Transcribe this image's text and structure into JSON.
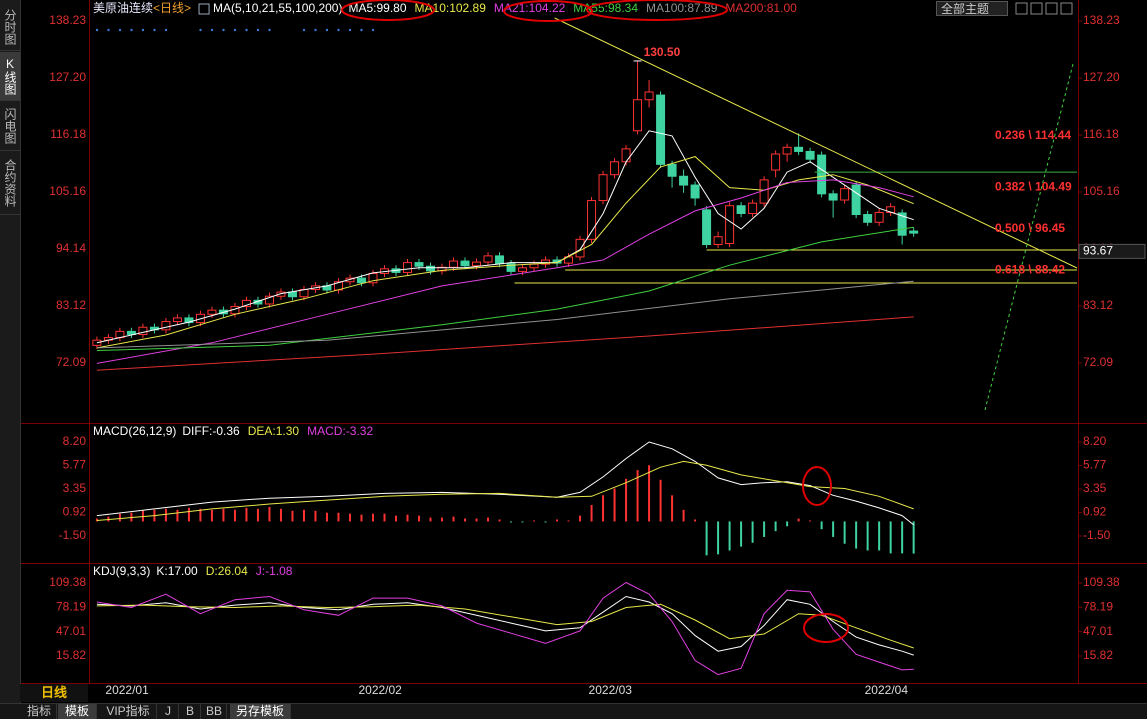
{
  "toolbar": {
    "title": "美原油连续",
    "period": "<日线>",
    "theme": "全部主题"
  },
  "sidebar": [
    "分时图",
    "K线图",
    "闪电图",
    "合约资料"
  ],
  "bottom_tabs": {
    "period": "日线",
    "buttons": [
      "指标",
      "模板",
      "VIP指标",
      "J",
      "B",
      "BB",
      "另存模板"
    ]
  },
  "chart_data": [
    {
      "type": "candlestick",
      "title": "MA(5,10,21,55,100,200)",
      "categories": [
        null,
        "2022/01",
        null,
        null,
        null,
        null,
        null,
        null,
        null,
        null,
        null,
        null,
        null,
        null,
        null,
        null,
        null,
        null,
        null,
        null,
        null,
        null,
        null,
        "2022/02",
        null,
        null,
        null,
        null,
        null,
        null,
        null,
        null,
        null,
        null,
        null,
        null,
        null,
        null,
        null,
        null,
        null,
        null,
        null,
        "2022/03",
        null,
        null,
        null,
        null,
        null,
        null,
        null,
        null,
        null,
        null,
        null,
        null,
        null,
        null,
        null,
        null,
        null,
        null,
        null,
        null,
        null,
        null,
        null,
        "2022/04",
        null,
        null,
        null,
        null
      ],
      "open": [
        75.5,
        76.5,
        77.0,
        78.2,
        77.6,
        79.0,
        78.5,
        80.1,
        80.8,
        79.9,
        81.5,
        82.3,
        81.6,
        83.0,
        84.2,
        83.5,
        85.0,
        85.8,
        84.9,
        86.3,
        87.0,
        86.2,
        87.8,
        88.5,
        87.6,
        89.4,
        90.3,
        89.6,
        91.5,
        90.8,
        89.9,
        90.6,
        91.8,
        90.9,
        91.6,
        92.8,
        91.3,
        89.8,
        90.5,
        91.2,
        92.0,
        91.4,
        92.6,
        96.0,
        103.5,
        108.5,
        111.0,
        117.0,
        123.0,
        123.9,
        110.5,
        108.2,
        106.5,
        101.7,
        95.0,
        95.2,
        102.5,
        101.0,
        103.0,
        109.4,
        112.5,
        113.8,
        113.0,
        112.3,
        104.8,
        103.6,
        106.5,
        100.8,
        99.3,
        101.2,
        101.1,
        97.6
      ],
      "high": [
        77.2,
        77.7,
        78.9,
        78.9,
        79.7,
        79.7,
        80.8,
        81.5,
        81.5,
        82.2,
        83.0,
        83.0,
        83.7,
        84.9,
        84.9,
        85.7,
        86.5,
        86.5,
        87.0,
        87.7,
        87.7,
        88.5,
        89.2,
        89.2,
        90.1,
        91.0,
        91.0,
        92.2,
        92.2,
        91.5,
        91.3,
        92.5,
        92.5,
        92.3,
        93.5,
        93.5,
        92.0,
        91.2,
        91.9,
        92.7,
        92.7,
        93.3,
        96.7,
        104.2,
        109.2,
        111.7,
        114.2,
        130.5,
        126.8,
        124.6,
        111.2,
        109.5,
        107.2,
        102.4,
        97.5,
        103.2,
        103.2,
        103.7,
        108.2,
        113.2,
        114.5,
        116.5,
        113.7,
        113.0,
        105.5,
        106.5,
        107.2,
        101.5,
        101.9,
        103.0,
        101.8,
        98.3
      ],
      "low": [
        74.8,
        75.8,
        76.3,
        76.9,
        76.9,
        77.8,
        77.8,
        79.4,
        79.2,
        79.2,
        80.8,
        80.9,
        80.9,
        82.3,
        82.8,
        82.8,
        84.3,
        84.2,
        84.2,
        85.6,
        85.5,
        85.5,
        87.1,
        86.9,
        86.9,
        88.7,
        88.9,
        88.9,
        90.1,
        89.2,
        89.2,
        89.9,
        90.2,
        90.2,
        90.9,
        90.6,
        89.1,
        89.1,
        89.8,
        90.5,
        90.7,
        90.7,
        91.9,
        95.3,
        102.8,
        107.8,
        110.3,
        116.3,
        121.5,
        109.8,
        106.0,
        105.0,
        102.5,
        94.3,
        94.3,
        94.5,
        100.3,
        100.3,
        102.3,
        108.0,
        111.0,
        112.3,
        110.8,
        104.1,
        100.2,
        102.9,
        100.1,
        98.6,
        98.6,
        100.5,
        95.0,
        96.5
      ],
      "close": [
        76.5,
        77.0,
        78.2,
        77.6,
        79.0,
        78.5,
        80.1,
        80.8,
        79.9,
        81.5,
        82.3,
        81.6,
        83.0,
        84.2,
        83.5,
        85.0,
        85.8,
        84.9,
        86.3,
        87.0,
        86.2,
        87.8,
        88.5,
        87.6,
        89.4,
        90.3,
        89.6,
        91.5,
        90.8,
        89.9,
        90.6,
        91.8,
        90.9,
        91.6,
        92.8,
        91.3,
        89.8,
        90.5,
        91.2,
        92.0,
        91.4,
        92.6,
        96.0,
        103.5,
        108.5,
        111.0,
        113.5,
        123.0,
        124.5,
        110.5,
        108.2,
        106.5,
        104.0,
        95.0,
        96.5,
        102.5,
        101.0,
        103.0,
        107.5,
        112.5,
        113.8,
        113.0,
        111.5,
        104.8,
        103.6,
        105.8,
        100.8,
        99.3,
        101.2,
        102.3,
        96.8,
        97.2
      ],
      "up_color": "#ff3232",
      "down_color": "#3ed3a0",
      "xlim": [
        -0.6,
        85.2
      ],
      "ylim": [
        61.06,
        139.58
      ],
      "yticks": [
        72.09,
        83.12,
        94.14,
        105.16,
        116.18,
        {
          "value": 127.2,
          "label": "127.20"
        },
        138.23
      ],
      "series": [
        {
          "name": "MA5:99.80",
          "color": "#ffffff",
          "x": [
            0,
            4,
            8,
            12,
            16,
            20,
            24,
            28,
            32,
            36,
            40,
            42,
            44,
            46,
            48,
            50,
            52,
            54,
            56,
            58,
            60,
            62,
            64,
            66,
            68,
            71
          ],
          "values": [
            76.0,
            78.0,
            80.0,
            82.5,
            85.5,
            87.0,
            89.5,
            90.5,
            90.5,
            91.5,
            91.5,
            94.0,
            101.0,
            111.0,
            117.0,
            116.0,
            108.0,
            101.0,
            98.0,
            102.0,
            109.0,
            111.0,
            108.0,
            105.0,
            102.0,
            99.8
          ]
        },
        {
          "name": "MA10:102.89",
          "color": "#e8e84a",
          "x": [
            0,
            6,
            12,
            18,
            24,
            30,
            36,
            40,
            43,
            46,
            49,
            52,
            55,
            58,
            61,
            64,
            67,
            71
          ],
          "values": [
            75.0,
            77.5,
            81.5,
            84.5,
            88.0,
            90.0,
            91.0,
            91.5,
            95.0,
            103.0,
            110.0,
            112.0,
            106.0,
            105.5,
            107.5,
            108.5,
            106.5,
            102.89
          ]
        },
        {
          "name": "MA21:104.22",
          "color": "#e040e0",
          "x": [
            0,
            10,
            20,
            30,
            40,
            44,
            48,
            52,
            56,
            60,
            64,
            68,
            71
          ],
          "values": [
            72.0,
            76.0,
            81.5,
            87.0,
            90.5,
            92.0,
            97.0,
            101.5,
            104.0,
            107.0,
            107.5,
            106.0,
            104.22
          ]
        },
        {
          "name": "MA55:98.34",
          "color": "#40d040",
          "x": [
            0,
            15,
            30,
            40,
            48,
            55,
            63,
            71
          ],
          "values": [
            74.5,
            75.5,
            79.5,
            82.5,
            86.0,
            91.0,
            95.5,
            98.34
          ]
        },
        {
          "name": "MA100:87.89",
          "color": "#909090",
          "x": [
            0,
            20,
            40,
            55,
            71
          ],
          "values": [
            75.0,
            76.5,
            80.5,
            84.5,
            87.89
          ]
        },
        {
          "name": "MA200:81.00",
          "color": "#e03030",
          "x": [
            0,
            24,
            48,
            71
          ],
          "values": [
            70.7,
            73.8,
            77.3,
            81.0
          ]
        }
      ],
      "annotation": "130.50",
      "price_marker": 93.67,
      "fib_levels": [
        {
          "value": 114.44,
          "label": "0.236 \\ 114.44"
        },
        {
          "value": 104.49,
          "label": "0.382 \\ 104.49"
        },
        {
          "value": 96.45,
          "label": "0.500 \\ 96.45"
        },
        {
          "value": 88.42,
          "label": "0.618 \\ 88.42"
        }
      ],
      "lines": [
        {
          "color": "#3cb043",
          "dash": false,
          "x": [
            62.4,
            85.2
          ],
          "values": [
            109.0,
            109.0
          ]
        },
        {
          "color": "#e8e84a",
          "dash": false,
          "x": [
            53.0,
            85.2
          ],
          "values": [
            93.94,
            93.94
          ]
        },
        {
          "color": "#e8e84a",
          "dash": false,
          "x": [
            40.7,
            85.2
          ],
          "values": [
            90.07,
            90.07
          ]
        },
        {
          "color": "#e8e84a",
          "dash": false,
          "x": [
            36.3,
            85.2
          ],
          "values": [
            87.55,
            87.55
          ]
        },
        {
          "color": "#e8e84a",
          "dash": false,
          "x": [
            39.8,
            85.2
          ],
          "values": [
            138.8,
            90.45
          ]
        },
        {
          "color": "#40d040",
          "dash": true,
          "x": [
            77.2,
            84.9
          ],
          "values": [
            63.0,
            130.3
          ]
        }
      ]
    },
    {
      "type": "macd",
      "title": "MACD(26,12,9)",
      "xlim": [
        -0.6,
        85.2
      ],
      "ylim": [
        -3.98,
        9.44
      ],
      "yticks": [
        {
          "value": 8.2,
          "label": "8.20"
        },
        5.77,
        3.35,
        0.92,
        {
          "value": -1.5,
          "label": "-1.50"
        }
      ],
      "series": [
        {
          "name": "DIFF:-0.36",
          "color": "#ffffff",
          "x": [
            0,
            5,
            10,
            15,
            20,
            25,
            30,
            35,
            40,
            42,
            44,
            46,
            48,
            50,
            52,
            54,
            56,
            58,
            60,
            62,
            64,
            66,
            68,
            70,
            71
          ],
          "values": [
            0.6,
            1.3,
            2.0,
            2.4,
            2.6,
            2.9,
            3.0,
            2.8,
            2.5,
            3.0,
            4.6,
            6.5,
            8.2,
            7.5,
            6.2,
            4.5,
            3.8,
            4.0,
            4.1,
            3.7,
            2.7,
            2.1,
            1.4,
            0.6,
            -0.36
          ]
        },
        {
          "name": "DEA:1.30",
          "color": "#e8e84a",
          "x": [
            0,
            5,
            10,
            15,
            20,
            25,
            30,
            35,
            40,
            43,
            46,
            49,
            51,
            53,
            56,
            59,
            62,
            65,
            68,
            71
          ],
          "values": [
            0.1,
            0.6,
            1.3,
            1.8,
            2.2,
            2.6,
            2.8,
            2.9,
            2.5,
            2.6,
            4.0,
            5.6,
            6.2,
            5.8,
            4.8,
            4.2,
            3.6,
            3.4,
            2.6,
            1.3
          ]
        },
        {
          "name": "MACD:-3.32",
          "color": "#e040e0",
          "bars": true,
          "up_color": "#ff3232",
          "down_color": "#3ed3a0",
          "values": [
            0.3,
            0.5,
            0.8,
            0.9,
            1.1,
            1.2,
            1.3,
            1.2,
            1.4,
            1.3,
            1.2,
            1.3,
            1.2,
            1.4,
            1.3,
            1.5,
            1.3,
            1.1,
            1.2,
            1.1,
            0.9,
            0.9,
            0.8,
            0.7,
            0.8,
            0.8,
            0.6,
            0.7,
            0.6,
            0.4,
            0.4,
            0.5,
            0.3,
            0.3,
            0.4,
            0.2,
            -0.1,
            -0.1,
            0.1,
            -0.1,
            0.2,
            0.1,
            0.6,
            1.7,
            2.7,
            3.4,
            4.4,
            5.3,
            5.8,
            4.3,
            2.7,
            1.2,
            0.2,
            -3.5,
            -3.4,
            -3.0,
            -2.6,
            -2.2,
            -1.6,
            -1.0,
            -0.5,
            0.3,
            0.1,
            -0.8,
            -1.6,
            -2.3,
            -2.8,
            -3.0,
            -3.0,
            -3.3,
            -3.3,
            -3.32
          ]
        }
      ]
    },
    {
      "type": "kdj",
      "title": "KDJ(9,3,3)",
      "xlim": [
        -0.6,
        85.2
      ],
      "ylim": [
        -17.5,
        119.6
      ],
      "yticks": [
        109.38,
        78.19,
        47.01,
        15.82
      ],
      "series": [
        {
          "name": "K:17.00",
          "color": "#ffffff",
          "x": [
            0,
            3,
            6,
            9,
            12,
            15,
            18,
            21,
            24,
            27,
            30,
            33,
            36,
            39,
            42,
            44,
            46,
            48,
            50,
            52,
            54,
            56,
            58,
            60,
            62,
            64,
            66,
            68,
            70,
            71
          ],
          "values": [
            82,
            80,
            84,
            76,
            81,
            84,
            78,
            75,
            82,
            84,
            78,
            68,
            58,
            48,
            52,
            72,
            92,
            85,
            70,
            42,
            22,
            28,
            55,
            88,
            82,
            60,
            40,
            30,
            22,
            17.0
          ]
        },
        {
          "name": "D:26.04",
          "color": "#e8e84a",
          "x": [
            0,
            4,
            8,
            12,
            16,
            20,
            24,
            28,
            32,
            36,
            40,
            43,
            46,
            49,
            52,
            55,
            58,
            61,
            63,
            66,
            69,
            71
          ],
          "values": [
            80,
            81,
            79,
            78,
            80,
            78,
            79,
            81,
            76,
            66,
            56,
            60,
            78,
            82,
            62,
            38,
            44,
            70,
            68,
            52,
            36,
            26.04
          ]
        },
        {
          "name": "J:-1.08",
          "color": "#e040e0",
          "x": [
            0,
            3,
            6,
            9,
            12,
            15,
            18,
            21,
            24,
            27,
            30,
            33,
            36,
            39,
            42,
            44,
            46,
            48,
            50,
            52,
            54,
            56,
            58,
            60,
            62,
            64,
            66,
            68,
            70,
            71
          ],
          "values": [
            85,
            78,
            95,
            70,
            88,
            92,
            75,
            68,
            90,
            90,
            80,
            58,
            45,
            32,
            48,
            90,
            110,
            95,
            60,
            10,
            -8,
            0,
            70,
            100,
            98,
            50,
            18,
            8,
            -2,
            -1.08
          ]
        }
      ]
    }
  ]
}
